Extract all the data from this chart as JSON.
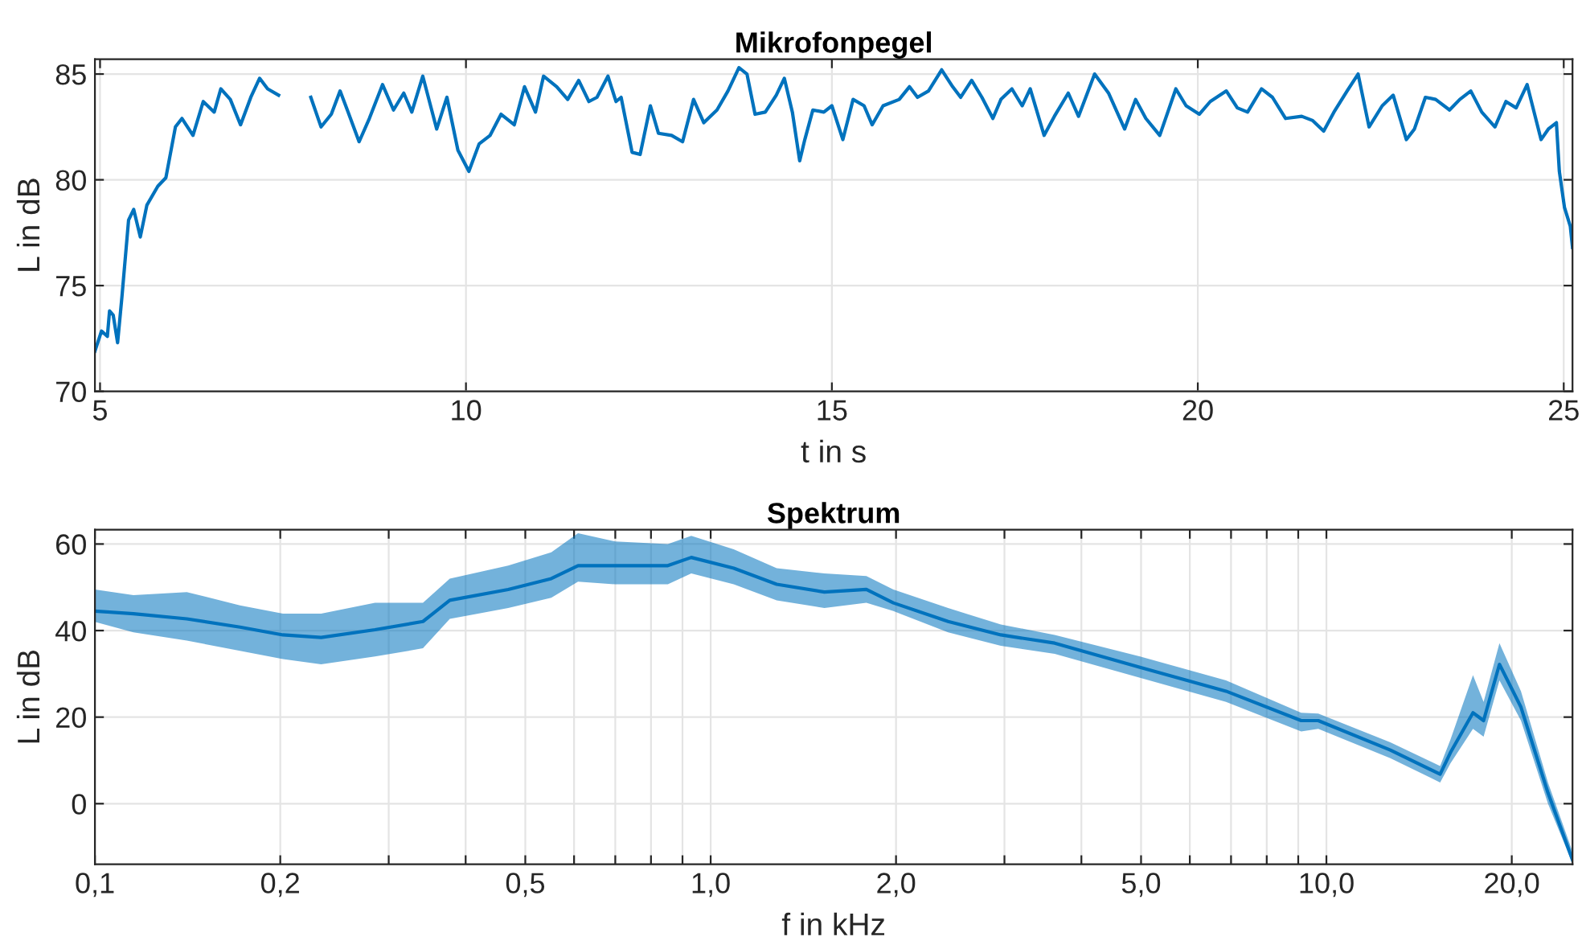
{
  "chart_data": [
    {
      "type": "line",
      "title": "Mikrofonpegel",
      "xlabel": "t in s",
      "ylabel": "L in dB",
      "xlim": [
        4.93,
        25.12
      ],
      "ylim": [
        70,
        85.7
      ],
      "xticks": [
        5,
        10,
        15,
        20,
        25
      ],
      "yticks": [
        70,
        75,
        80,
        85
      ],
      "grid": true,
      "line_style": "solid",
      "marker": "none",
      "series": [
        {
          "color": "#0072bd",
          "x": [
            4.93,
            5.02,
            5.1,
            5.13,
            5.18,
            5.24,
            5.3,
            5.39,
            5.46,
            5.55,
            5.64,
            5.79,
            5.9,
            6.03,
            6.12,
            6.27,
            6.41,
            6.56,
            6.65,
            6.78,
            6.92,
            7.06,
            7.18,
            7.29,
            7.44,
            7.55,
            7.64,
            7.73,
            7.88,
            8.02,
            8.16,
            8.28,
            8.39,
            8.54,
            8.68,
            8.86,
            9.01,
            9.15,
            9.26,
            9.41,
            9.6,
            9.74,
            9.89,
            10.04,
            10.18,
            10.33,
            10.48,
            10.66,
            10.8,
            10.95,
            11.06,
            11.24,
            11.39,
            11.54,
            11.68,
            11.79,
            11.94,
            12.05,
            12.12,
            12.27,
            12.38,
            12.52,
            12.63,
            12.81,
            12.96,
            13.11,
            13.25,
            13.43,
            13.58,
            13.73,
            13.84,
            13.95,
            14.09,
            14.24,
            14.35,
            14.46,
            14.56,
            14.63,
            14.74,
            14.89,
            15.0,
            15.15,
            15.29,
            15.44,
            15.55,
            15.7,
            15.92,
            16.06,
            16.17,
            16.32,
            16.5,
            16.65,
            16.76,
            16.91,
            17.05,
            17.2,
            17.31,
            17.46,
            17.6,
            17.71,
            17.9,
            18.04,
            18.23,
            18.37,
            18.59,
            18.78,
            19.0,
            19.15,
            19.29,
            19.48,
            19.7,
            19.84,
            20.02,
            20.17,
            20.39,
            20.54,
            20.68,
            20.87,
            21.02,
            21.2,
            21.42,
            21.57,
            21.72,
            21.86,
            22.04,
            22.19,
            22.34,
            22.52,
            22.67,
            22.85,
            22.96,
            23.11,
            23.25,
            23.44,
            23.58,
            23.73,
            23.88,
            24.06,
            24.21,
            24.35,
            24.5,
            24.69,
            24.79,
            24.9,
            24.94,
            25.01,
            25.09,
            25.12
          ],
          "values": [
            71.9,
            72.85,
            72.6,
            73.8,
            73.6,
            72.3,
            74.5,
            78.1,
            78.6,
            77.3,
            78.8,
            79.7,
            80.1,
            82.5,
            82.9,
            82.1,
            83.7,
            83.2,
            84.3,
            83.8,
            82.6,
            83.9,
            84.8,
            84.3,
            84.0,
            null,
            null,
            null,
            83.9,
            82.5,
            83.1,
            84.2,
            83.2,
            81.8,
            82.9,
            84.5,
            83.3,
            84.1,
            83.2,
            84.9,
            82.4,
            83.9,
            81.4,
            80.4,
            81.7,
            82.1,
            83.1,
            82.6,
            84.4,
            83.2,
            84.9,
            84.4,
            83.8,
            84.7,
            83.7,
            83.9,
            84.9,
            83.7,
            83.9,
            81.3,
            81.2,
            83.5,
            82.2,
            82.1,
            81.8,
            83.8,
            82.7,
            83.3,
            84.2,
            85.3,
            85.0,
            83.1,
            83.2,
            84.0,
            84.8,
            83.2,
            80.9,
            81.9,
            83.3,
            83.2,
            83.5,
            81.9,
            83.8,
            83.5,
            82.6,
            83.5,
            83.8,
            84.4,
            83.9,
            84.2,
            85.2,
            84.4,
            83.9,
            84.7,
            83.9,
            82.9,
            83.8,
            84.3,
            83.5,
            84.3,
            82.1,
            83.0,
            84.1,
            83.0,
            85.0,
            84.1,
            82.4,
            83.8,
            82.9,
            82.1,
            84.3,
            83.5,
            83.1,
            83.7,
            84.2,
            83.4,
            83.2,
            84.3,
            83.9,
            82.9,
            83.0,
            82.8,
            82.3,
            83.2,
            84.2,
            85.0,
            82.5,
            83.5,
            84.0,
            81.9,
            82.4,
            83.9,
            83.8,
            83.3,
            83.8,
            84.2,
            83.2,
            82.5,
            83.7,
            83.4,
            84.5,
            81.9,
            82.4,
            82.7,
            80.4,
            78.7,
            77.8,
            76.8
          ]
        }
      ]
    },
    {
      "type": "line",
      "title": "Spektrum",
      "xlabel": "f in kHz",
      "ylabel": "L in dB",
      "log": "x",
      "xlim": [
        0.1,
        25.1
      ],
      "ylim": [
        -14,
        63.3
      ],
      "xticks": [
        {
          "value": 0.1,
          "label": "0,1"
        },
        {
          "value": 0.2,
          "label": "0,2"
        },
        {
          "value": 0.3,
          "label": null
        },
        {
          "value": 0.4,
          "label": null
        },
        {
          "value": 0.5,
          "label": "0,5"
        },
        {
          "value": 0.6,
          "label": null
        },
        {
          "value": 0.7,
          "label": null
        },
        {
          "value": 0.8,
          "label": null
        },
        {
          "value": 0.9,
          "label": null
        },
        {
          "value": 1,
          "label": "1,0"
        },
        {
          "value": 2,
          "label": "2,0"
        },
        {
          "value": 3,
          "label": null
        },
        {
          "value": 4,
          "label": null
        },
        {
          "value": 5,
          "label": "5,0"
        },
        {
          "value": 6,
          "label": null
        },
        {
          "value": 7,
          "label": null
        },
        {
          "value": 8,
          "label": null
        },
        {
          "value": 9,
          "label": null
        },
        {
          "value": 10,
          "label": "10,0"
        },
        {
          "value": 20,
          "label": "20,0"
        }
      ],
      "yticks": [
        0,
        20,
        40,
        60
      ],
      "grid": true,
      "line_style": "solid",
      "marker": "none",
      "series": [
        {
          "color": "#0072bd",
          "x": [
            0.1,
            0.1155,
            0.141,
            0.172,
            0.202,
            0.233,
            0.285,
            0.341,
            0.377,
            0.469,
            0.551,
            0.609,
            0.7,
            0.852,
            0.93,
            1.09,
            1.28,
            1.53,
            1.79,
            1.98,
            2.43,
            2.96,
            3.62,
            4.98,
            6.87,
            9.1,
            9.7,
            12.7,
            15.3,
            15.9,
            17.3,
            18.0,
            19.1,
            20.7,
            22.9,
            25.1
          ],
          "values": [
            44.5,
            43.9,
            42.7,
            40.8,
            39.0,
            38.4,
            40.2,
            42.1,
            47.0,
            49.5,
            52.0,
            55.0,
            55.0,
            55.0,
            56.9,
            54.4,
            50.7,
            48.9,
            49.5,
            46.4,
            42.1,
            39.0,
            37.1,
            31.5,
            26.0,
            19.2,
            19.2,
            12.4,
            6.8,
            11.8,
            21.0,
            19.2,
            32.2,
            22.3,
            2.5,
            -13.0
          ],
          "lower": [
            42.0,
            39.6,
            37.7,
            35.3,
            33.4,
            32.2,
            34.0,
            35.9,
            42.7,
            45.2,
            47.6,
            51.3,
            50.7,
            50.7,
            53.2,
            50.7,
            47.0,
            45.2,
            46.4,
            44.5,
            39.6,
            36.5,
            34.6,
            29.1,
            23.5,
            16.7,
            17.3,
            10.5,
            4.9,
            9.3,
            17.3,
            15.5,
            28.5,
            19.2,
            0.0,
            -13.8
          ],
          "upper": [
            49.5,
            48.2,
            48.9,
            45.8,
            43.9,
            43.9,
            46.4,
            46.4,
            52.0,
            55.0,
            58.1,
            62.5,
            60.6,
            60.0,
            61.9,
            58.8,
            54.4,
            53.2,
            52.6,
            49.5,
            45.2,
            41.4,
            39.0,
            34.0,
            28.5,
            21.0,
            20.8,
            14.2,
            8.7,
            14.8,
            29.7,
            23.5,
            37.1,
            26.0,
            4.9,
            -11.1
          ]
        }
      ]
    }
  ]
}
